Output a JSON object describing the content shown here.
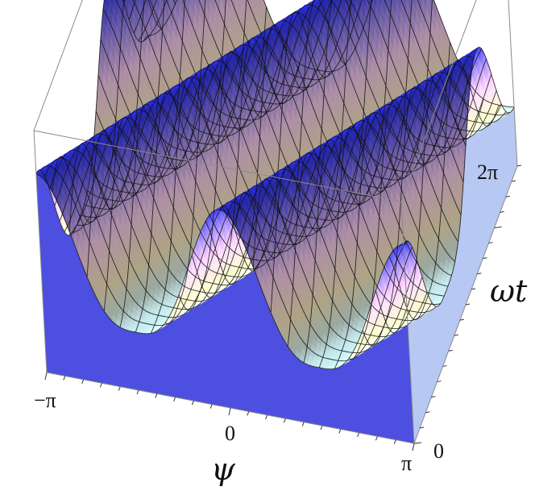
{
  "chart_data": {
    "type": "surface",
    "xlabel": "ψ",
    "ylabel": "ωt",
    "x_tick_labels": [
      "−π",
      "0",
      "π"
    ],
    "y_tick_labels": [
      "0",
      "2π"
    ],
    "x_range": [
      -3.1416,
      3.1416
    ],
    "y_range": [
      0,
      9.0
    ],
    "mesh": true,
    "colors": {
      "peak": "#2a2ee6",
      "mid": "#f2c6e8",
      "ridge": "#f3e3b8",
      "valley": "#c9eef2",
      "mesh_line": "#111111",
      "box": "#8a8a8a"
    }
  }
}
